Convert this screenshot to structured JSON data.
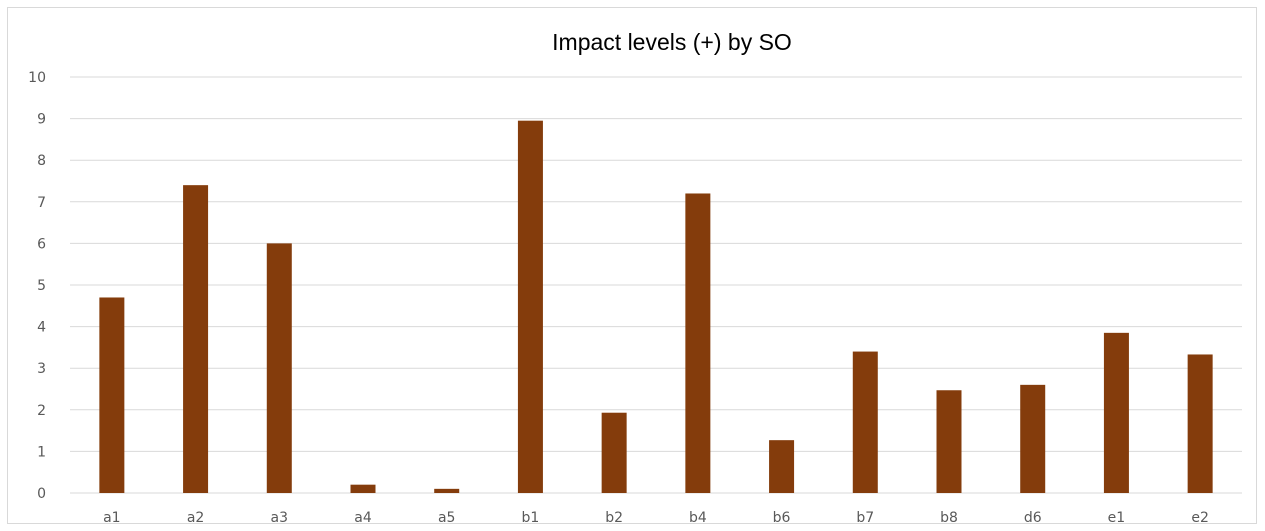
{
  "chart_data": {
    "type": "bar",
    "title": "Impact levels (+) by SO",
    "xlabel": "",
    "ylabel": "",
    "categories": [
      "a1",
      "a2",
      "a3",
      "a4",
      "a5",
      "b1",
      "b2",
      "b4",
      "b6",
      "b7",
      "b8",
      "d6",
      "e1",
      "e2"
    ],
    "values": [
      4.7,
      7.4,
      6.0,
      0.2,
      0.1,
      8.95,
      1.93,
      7.2,
      1.27,
      3.4,
      2.47,
      2.6,
      3.85,
      3.33
    ],
    "ylim": [
      0,
      10
    ],
    "yticks": [
      "0",
      "1",
      "2",
      "3",
      "4",
      "5",
      "6",
      "7",
      "8",
      "9",
      "10"
    ],
    "grid": true,
    "legend": "none",
    "bar_color": "#843C0C",
    "grid_color": "#d9d9d9"
  }
}
